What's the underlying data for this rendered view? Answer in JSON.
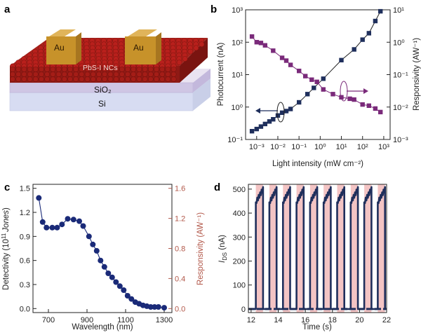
{
  "panels": {
    "a": {
      "letter": "a",
      "labels": {
        "au_left": "Au",
        "au_right": "Au",
        "ncs": "PbS-I NCs",
        "sio2": "SiO₂",
        "si": "Si"
      }
    },
    "b": {
      "letter": "b"
    },
    "c": {
      "letter": "c"
    },
    "d": {
      "letter": "d"
    }
  },
  "colors": {
    "photocurrent": "#1f2f5c",
    "responsivity_b": "#7a2a7a",
    "detectivity": "#1a2a78",
    "responsivity_axis_c": "#b2584a",
    "ids_trace": "#1f2f5c",
    "light_on_band": "#f3c4c4",
    "nc_sphere": "#b8201c",
    "au_pad": "#c7922a"
  },
  "chart_data": [
    {
      "panel": "b",
      "type": "scatter",
      "xlabel": "Light intensity (mW cm⁻²)",
      "ylabel": "Photocurrent (nA)",
      "y2label": "Responsivity (AW⁻¹)",
      "x_scale": "log",
      "y_scale": "log",
      "y2_scale": "log",
      "xlim": [
        0.0003,
        2000
      ],
      "ylim": [
        0.1,
        1000
      ],
      "y2lim": [
        0.001,
        10
      ],
      "x_ticks": [
        "10⁻³",
        "10⁻²",
        "10⁻¹",
        "10⁰",
        "10¹",
        "10²",
        "10³"
      ],
      "y_ticks": [
        "10⁻¹",
        "10⁰",
        "10¹",
        "10²",
        "10³"
      ],
      "y2_ticks": [
        "10⁻³",
        "10⁻²",
        "10⁻¹",
        "10⁰",
        "10¹"
      ],
      "series": [
        {
          "name": "Photocurrent",
          "axis": "left",
          "x": [
            0.0006,
            0.001,
            0.0016,
            0.0025,
            0.004,
            0.006,
            0.01,
            0.016,
            0.025,
            0.04,
            0.1,
            0.25,
            0.5,
            1.4,
            10,
            40,
            100,
            200,
            400,
            700
          ],
          "y": [
            0.18,
            0.21,
            0.25,
            0.3,
            0.36,
            0.42,
            0.55,
            0.67,
            0.75,
            0.87,
            1.4,
            2.5,
            3.9,
            7.5,
            28,
            60,
            120,
            190,
            450,
            900
          ]
        },
        {
          "name": "Responsivity",
          "axis": "right",
          "x": [
            0.0006,
            0.001,
            0.0016,
            0.0025,
            0.006,
            0.016,
            0.025,
            0.04,
            0.1,
            0.2,
            0.4,
            0.7,
            1.4,
            4,
            10,
            25,
            40,
            100,
            200,
            400,
            700
          ],
          "y": [
            1.5,
            1.0,
            0.95,
            0.8,
            0.55,
            0.33,
            0.27,
            0.2,
            0.13,
            0.09,
            0.07,
            0.06,
            0.035,
            0.025,
            0.02,
            0.018,
            0.017,
            0.012,
            0.011,
            0.009,
            0.007
          ]
        }
      ]
    },
    {
      "panel": "c",
      "type": "line",
      "xlabel": "Wavelength (nm)",
      "ylabel_pre": "Detectivity (10",
      "ylabel_sup": "11",
      "ylabel_unit": "Jones",
      "ylabel_post": ")",
      "y2label": "Responsivity (AW⁻¹)",
      "xlim": [
        620,
        1340
      ],
      "ylim": [
        -0.05,
        1.55
      ],
      "y2lim": [
        -0.0533,
        1.6533
      ],
      "x_ticks": [
        "700",
        "900",
        "1100",
        "1300"
      ],
      "y_ticks": [
        "0.0",
        "0.3",
        "0.6",
        "0.9",
        "1.2",
        "1.5"
      ],
      "y2_ticks": [
        "0.0",
        "0.4",
        "0.8",
        "1.2",
        "1.6"
      ],
      "series": [
        {
          "name": "Detectivity",
          "x": [
            650,
            670,
            690,
            720,
            745,
            770,
            800,
            830,
            860,
            880,
            910,
            930,
            950,
            970,
            990,
            1010,
            1030,
            1050,
            1070,
            1090,
            1110,
            1130,
            1150,
            1170,
            1190,
            1210,
            1230,
            1250,
            1270,
            1300
          ],
          "y": [
            1.38,
            1.08,
            1.01,
            1.01,
            1.01,
            1.05,
            1.12,
            1.11,
            1.09,
            1.03,
            0.9,
            0.8,
            0.72,
            0.6,
            0.52,
            0.44,
            0.39,
            0.33,
            0.28,
            0.23,
            0.16,
            0.12,
            0.08,
            0.06,
            0.04,
            0.03,
            0.02,
            0.02,
            0.02,
            0.01
          ]
        }
      ]
    },
    {
      "panel": "d",
      "type": "line",
      "xlabel": "Time (s)",
      "ylabel_main": "I",
      "ylabel_sub": "DS",
      "ylabel_post": " (nA)",
      "xlim": [
        11.8,
        22
      ],
      "ylim": [
        -15,
        520
      ],
      "x_ticks": [
        "12",
        "14",
        "16",
        "18",
        "20",
        "22"
      ],
      "y_ticks": [
        "0",
        "100",
        "200",
        "300",
        "400",
        "500"
      ],
      "off_level": 0,
      "on_level_range": [
        445,
        500
      ],
      "on_intervals": [
        [
          12.35,
          12.88
        ],
        [
          13.35,
          13.88
        ],
        [
          14.35,
          14.88
        ],
        [
          15.35,
          15.88
        ],
        [
          16.35,
          16.88
        ],
        [
          17.35,
          17.88
        ],
        [
          18.35,
          18.88
        ],
        [
          19.35,
          19.88
        ],
        [
          20.35,
          20.88
        ],
        [
          21.35,
          21.88
        ]
      ]
    }
  ]
}
